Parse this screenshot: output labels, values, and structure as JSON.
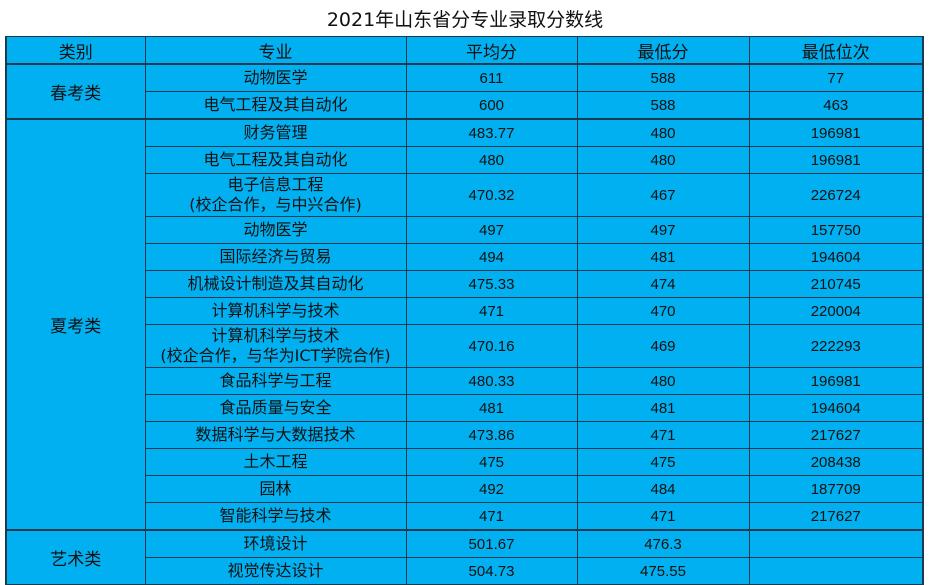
{
  "title": "2021年山东省分专业录取分数线",
  "header": {
    "category": "类别",
    "major": "专业",
    "average": "平均分",
    "min_score": "最低分",
    "min_rank": "最低位次"
  },
  "groups": [
    {
      "category": "春考类",
      "rows": [
        {
          "major": "动物医学",
          "avg": "611",
          "min": "588",
          "rank": "77"
        },
        {
          "major": "电气工程及其自动化",
          "avg": "600",
          "min": "588",
          "rank": "463"
        }
      ]
    },
    {
      "category": "夏考类",
      "rows": [
        {
          "major": "财务管理",
          "avg": "483.77",
          "min": "480",
          "rank": "196981"
        },
        {
          "major": "电气工程及其自动化",
          "avg": "480",
          "min": "480",
          "rank": "196981"
        },
        {
          "major": "电子信息工程",
          "major_note": "(校企合作，与中兴合作)",
          "avg": "470.32",
          "min": "467",
          "rank": "226724"
        },
        {
          "major": "动物医学",
          "avg": "497",
          "min": "497",
          "rank": "157750"
        },
        {
          "major": "国际经济与贸易",
          "avg": "494",
          "min": "481",
          "rank": "194604"
        },
        {
          "major": "机械设计制造及其自动化",
          "avg": "475.33",
          "min": "474",
          "rank": "210745"
        },
        {
          "major": "计算机科学与技术",
          "avg": "471",
          "min": "470",
          "rank": "220004"
        },
        {
          "major": "计算机科学与技术",
          "major_note": "(校企合作，与华为ICT学院合作)",
          "avg": "470.16",
          "min": "469",
          "rank": "222293"
        },
        {
          "major": "食品科学与工程",
          "avg": "480.33",
          "min": "480",
          "rank": "196981"
        },
        {
          "major": "食品质量与安全",
          "avg": "481",
          "min": "481",
          "rank": "194604"
        },
        {
          "major": "数据科学与大数据技术",
          "avg": "473.86",
          "min": "471",
          "rank": "217627"
        },
        {
          "major": "土木工程",
          "avg": "475",
          "min": "475",
          "rank": "208438"
        },
        {
          "major": "园林",
          "avg": "492",
          "min": "484",
          "rank": "187709"
        },
        {
          "major": "智能科学与技术",
          "avg": "471",
          "min": "471",
          "rank": "217627"
        }
      ]
    },
    {
      "category": "艺术类",
      "rows": [
        {
          "major": "环境设计",
          "avg": "501.67",
          "min": "476.3",
          "rank": ""
        },
        {
          "major": "视觉传达设计",
          "avg": "504.73",
          "min": "475.55",
          "rank": ""
        }
      ]
    }
  ],
  "colors": {
    "cell_background": "#00b0f0",
    "border": "#1a3a4f",
    "text": "#111111"
  }
}
